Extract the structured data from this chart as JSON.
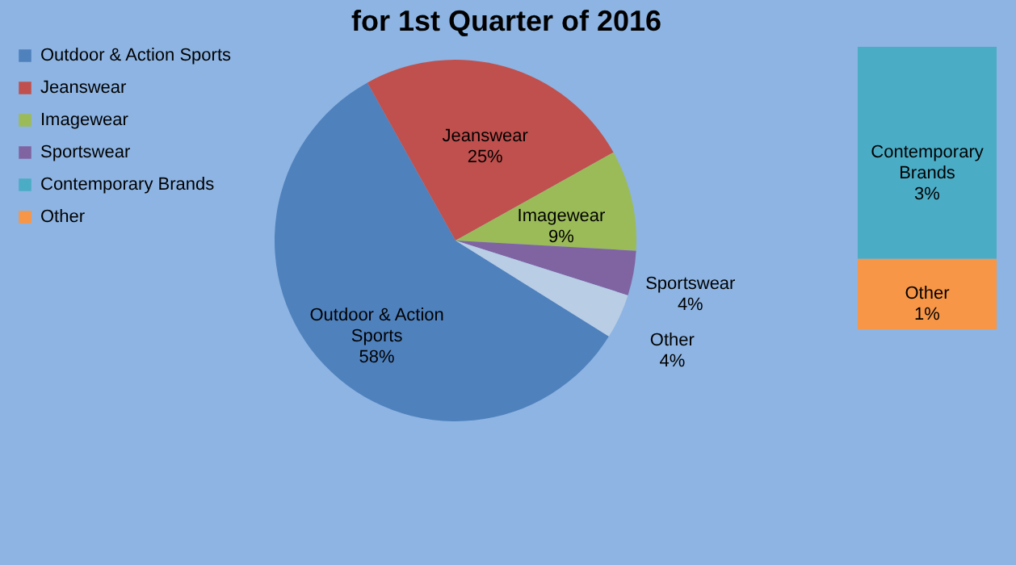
{
  "chart_data": [
    {
      "type": "pie",
      "title": "for 1st Quarter of 2016",
      "categories": [
        "Outdoor & Action Sports",
        "Jeanswear",
        "Imagewear",
        "Sportswear",
        "Other"
      ],
      "values": [
        58,
        25,
        9,
        4,
        4
      ],
      "colors": [
        "#4f81bd",
        "#c0504d",
        "#9bbb59",
        "#8064a2",
        "#b9cde5"
      ],
      "value_labels": [
        "58%",
        "25%",
        "9%",
        "4%",
        "4%"
      ],
      "legend": "left"
    },
    {
      "type": "bar",
      "stacked": true,
      "categories": [
        null
      ],
      "series": [
        {
          "name": "Other",
          "color": "#f79646",
          "values": [
            1
          ],
          "value_labels": [
            "1%"
          ]
        },
        {
          "name": "Contemporary Brands",
          "color": "#4bacc6",
          "values": [
            3
          ],
          "value_labels": [
            "3%"
          ]
        }
      ],
      "legend": "left"
    }
  ]
}
